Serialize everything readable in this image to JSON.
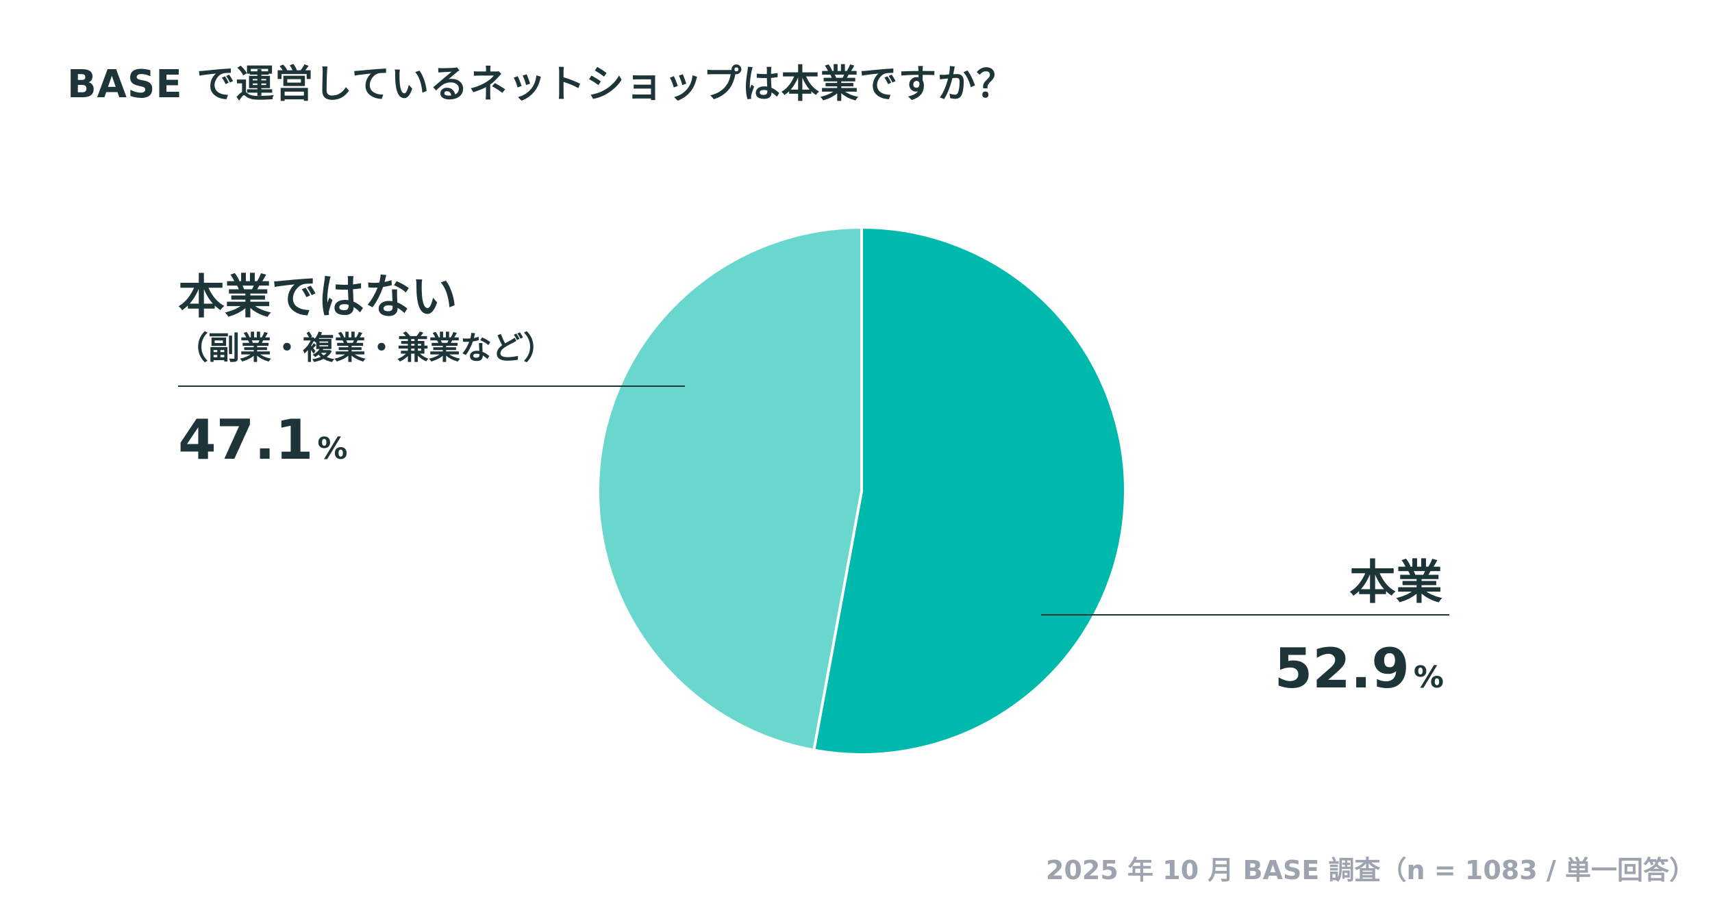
{
  "chart_data": {
    "type": "pie",
    "title": "BASE で運営しているネットショップは本業ですか？",
    "slices": [
      {
        "label": "本業",
        "sublabel": "",
        "value": 52.9,
        "display": "52.9",
        "color": "#00b9ad"
      },
      {
        "label": "本業ではない",
        "sublabel": "（副業・複業・兼業など）",
        "value": 47.1,
        "display": "47.1",
        "color": "#6ad7cf"
      }
    ],
    "unit": "%",
    "start": "top",
    "direction": "clockwise",
    "legend": "none",
    "note": "2025 年 10 月 BASE 調査（n = 1083 / 単一回答）"
  },
  "colors": {
    "text": "#1d3438",
    "note": "#9ea3b0"
  }
}
